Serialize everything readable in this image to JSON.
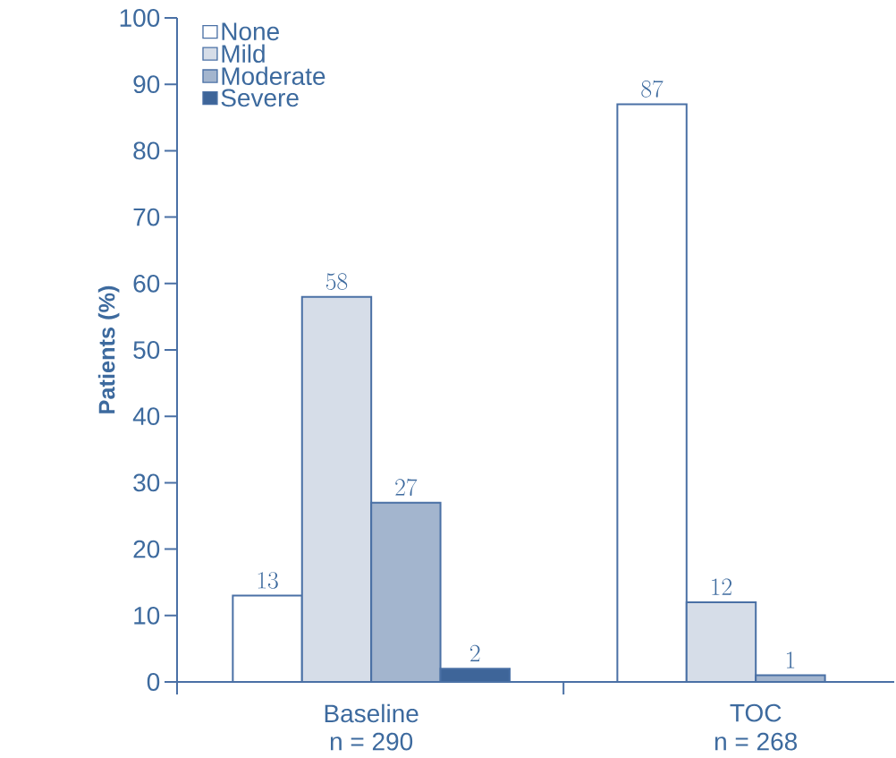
{
  "chart_data": {
    "type": "bar",
    "ylabel": "Patients (%)",
    "categories": [
      "Baseline",
      "TOC"
    ],
    "series": [
      {
        "name": "None",
        "color": "#ffffff",
        "values": [
          13,
          87
        ]
      },
      {
        "name": "Mild",
        "color": "#d6dde8",
        "values": [
          58,
          12
        ]
      },
      {
        "name": "Moderate",
        "color": "#a3b5ce",
        "values": [
          27,
          1
        ]
      },
      {
        "name": "Severe",
        "color": "#3e6599",
        "values": [
          2,
          null
        ]
      }
    ],
    "ylim": [
      0,
      100
    ],
    "yticks": [
      0,
      10,
      20,
      30,
      40,
      50,
      60,
      70,
      80,
      90,
      100
    ],
    "data_labels": true,
    "legend": "top left",
    "grid": false,
    "annotations": [
      "n = 290",
      "n = 268"
    ]
  }
}
